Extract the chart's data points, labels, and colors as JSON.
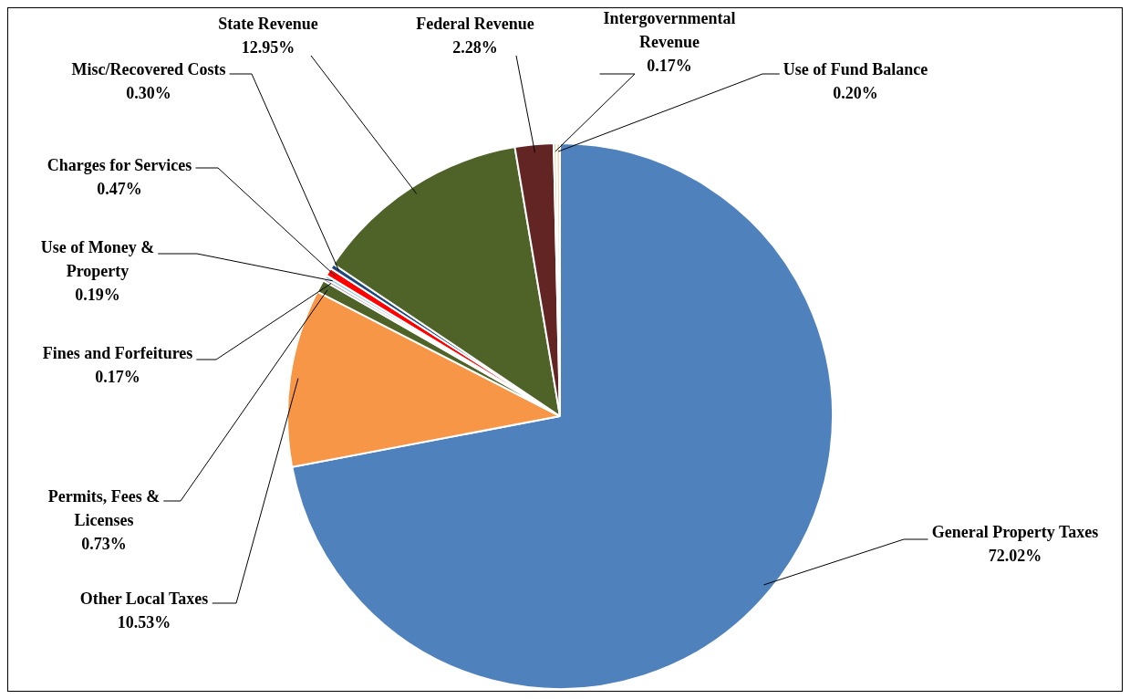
{
  "chart_data": {
    "type": "pie",
    "categories": [
      "General Property Taxes",
      "Other Local Taxes",
      "Permits, Fees & Licenses",
      "Fines and Forfeitures",
      "Use of Money & Property",
      "Charges for Services",
      "Misc/Recovered Costs",
      "State Revenue",
      "Federal Revenue",
      "Intergovernmental Revenue",
      "Use of Fund Balance"
    ],
    "values": [
      72.02,
      10.53,
      0.73,
      0.17,
      0.19,
      0.47,
      0.3,
      12.95,
      2.28,
      0.17,
      0.2
    ],
    "value_labels": [
      "72.02%",
      "10.53%",
      "0.73%",
      "0.17%",
      "0.19%",
      "0.47%",
      "0.30%",
      "12.95%",
      "2.28%",
      "0.17%",
      "0.20%"
    ],
    "colors": [
      "#4f81bd",
      "#f79646",
      "#4f6228",
      "#b3a2c7",
      "#93cddd",
      "#ff0000",
      "#1f497d",
      "#4f6228",
      "#632523",
      "#c3d69b",
      "#fcd5b5"
    ],
    "legend": false
  }
}
